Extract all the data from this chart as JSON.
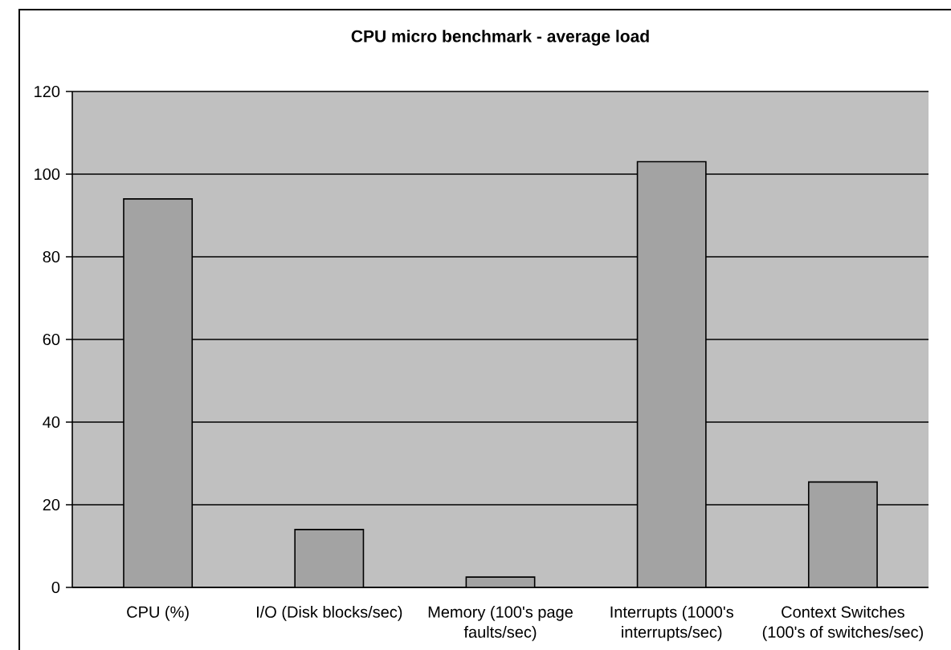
{
  "chart_data": {
    "type": "bar",
    "title": "CPU micro benchmark - average load",
    "categories": [
      "CPU (%)",
      "I/O (Disk blocks/sec)",
      "Memory (100's page faults/sec)",
      "Interrupts (1000's interrupts/sec)",
      "Context Switches (100's of switches/sec)"
    ],
    "values": [
      94,
      14,
      2.5,
      103,
      25.5
    ],
    "color": "#a3a3a3",
    "ylim": [
      0,
      120
    ],
    "yticks": [
      0,
      20,
      40,
      60,
      80,
      100,
      120
    ],
    "grid": "y"
  }
}
